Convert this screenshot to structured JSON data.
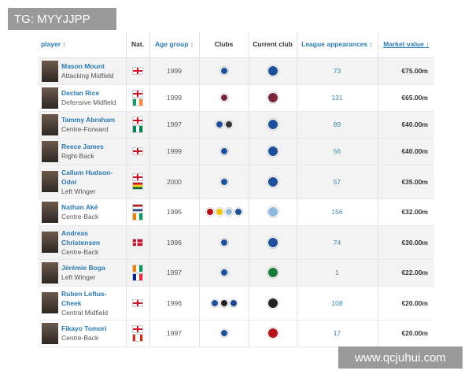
{
  "watermarks": {
    "top": "TG: MYYJJPP",
    "bottom": "www.qcjuhui.com"
  },
  "headers": {
    "player": "player ↕",
    "nat": "Nat.",
    "age": "Age group ↕",
    "clubs": "Clubs",
    "current": "Current club",
    "apps": "League appearances ↕",
    "value": "Market value ↓"
  },
  "club_colors": {
    "chelsea": "#1d4f9a",
    "west-ham": "#7a263a",
    "swansea": "#333333",
    "bournemouth": "#b50e12",
    "watford": "#f2c200",
    "man-city": "#8fb8de",
    "sassuolo": "#1a7a3c",
    "fulham": "#222222",
    "crystal-palace": "#1b458f",
    "ac-milan": "#b5121b"
  },
  "players": [
    {
      "name": "Mason Mount",
      "position": "Attacking Midfield",
      "nat": [
        "england"
      ],
      "age": "1999",
      "clubs": [
        "chelsea"
      ],
      "current": "chelsea",
      "apps": "73",
      "value": "€75.00m",
      "bg": "g"
    },
    {
      "name": "Declan Rice",
      "position": "Defensive Midfield",
      "nat": [
        "england",
        "ireland"
      ],
      "age": "1999",
      "clubs": [
        "west-ham"
      ],
      "current": "west-ham",
      "apps": "131",
      "value": "€65.00m",
      "bg": "w"
    },
    {
      "name": "Tammy Abraham",
      "position": "Centre-Forward",
      "nat": [
        "england",
        "nigeria"
      ],
      "age": "1997",
      "clubs": [
        "chelsea",
        "swansea"
      ],
      "current": "chelsea",
      "apps": "89",
      "value": "€40.00m",
      "bg": "g"
    },
    {
      "name": "Reece James",
      "position": "Right-Back",
      "nat": [
        "england"
      ],
      "age": "1999",
      "clubs": [
        "chelsea"
      ],
      "current": "chelsea",
      "apps": "56",
      "value": "€40.00m",
      "bg": "g"
    },
    {
      "name": "Callum Hudson-Odoi",
      "position": "Left Winger",
      "nat": [
        "england",
        "ghana"
      ],
      "age": "2000",
      "clubs": [
        "chelsea"
      ],
      "current": "chelsea",
      "apps": "57",
      "value": "€35.00m",
      "bg": "g"
    },
    {
      "name": "Nathan Aké",
      "position": "Centre-Back",
      "nat": [
        "netherlands",
        "ivory-coast"
      ],
      "age": "1995",
      "clubs": [
        "bournemouth",
        "watford",
        "man-city",
        "chelsea"
      ],
      "current": "man-city",
      "apps": "156",
      "value": "€32.00m",
      "bg": "w"
    },
    {
      "name": "Andreas Christensen",
      "position": "Centre-Back",
      "nat": [
        "denmark"
      ],
      "age": "1996",
      "clubs": [
        "chelsea"
      ],
      "current": "chelsea",
      "apps": "74",
      "value": "€30.00m",
      "bg": "g"
    },
    {
      "name": "Jérémie Boga",
      "position": "Left Winger",
      "nat": [
        "ivory-coast",
        "france"
      ],
      "age": "1997",
      "clubs": [
        "chelsea"
      ],
      "current": "sassuolo",
      "apps": "1",
      "value": "€22.00m",
      "bg": "g"
    },
    {
      "name": "Ruben Loftus-Cheek",
      "position": "Central Midfield",
      "nat": [
        "england"
      ],
      "age": "1996",
      "clubs": [
        "chelsea",
        "fulham",
        "crystal-palace"
      ],
      "current": "fulham",
      "apps": "108",
      "value": "€20.00m",
      "bg": "w"
    },
    {
      "name": "Fikayo Tomori",
      "position": "Centre-Back",
      "nat": [
        "england",
        "canada"
      ],
      "age": "1997",
      "clubs": [
        "chelsea"
      ],
      "current": "ac-milan",
      "apps": "17",
      "value": "€20.00m",
      "bg": "w"
    }
  ]
}
